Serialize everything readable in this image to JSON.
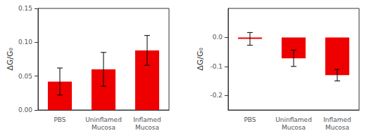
{
  "chart_data": [
    {
      "type": "bar",
      "categories": [
        "PBS",
        "Uninflamed\nMucosa",
        "Inflamed\nMucosa"
      ],
      "values": [
        0.042,
        0.06,
        0.088
      ],
      "errors": [
        0.02,
        0.025,
        0.022
      ],
      "color": "#ee0000",
      "ylabel": "ΔG/G₀",
      "ylim": [
        0,
        0.15
      ],
      "yticks": [
        {
          "value": 0.0,
          "label": "0.00"
        },
        0.05,
        {
          "value": 0.1,
          "label": "0.10"
        },
        0.15
      ],
      "grid": false
    },
    {
      "type": "bar",
      "categories": [
        "PBS",
        "Uninflamed\nMucosa",
        "Inflamed\nMucosa"
      ],
      "values": [
        -0.005,
        -0.072,
        -0.13
      ],
      "errors": [
        0.022,
        0.028,
        0.02
      ],
      "color": "#ee0000",
      "ylabel": "ΔG/G₀",
      "ylim": [
        -0.25,
        0.1
      ],
      "yticks": [
        {
          "value": 0.0,
          "label": "0.0"
        },
        -0.1,
        -0.2
      ],
      "grid": false
    }
  ]
}
